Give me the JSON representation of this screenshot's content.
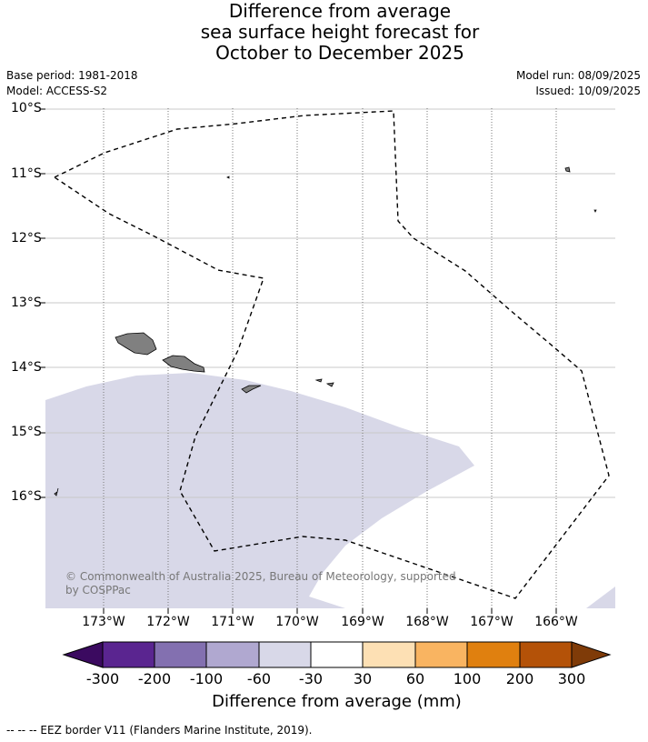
{
  "title": {
    "line1": "Difference from average",
    "line2": "sea surface height forecast for",
    "line3": "October to December 2025"
  },
  "meta": {
    "base_period": "Base period: 1981-2018",
    "model": "Model: ACCESS-S2",
    "model_run": "Model run: 08/09/2025",
    "issued": "Issued: 10/09/2025"
  },
  "map": {
    "lat_labels": [
      "10°S",
      "11°S",
      "12°S",
      "13°S",
      "14°S",
      "15°S",
      "16°S"
    ],
    "lon_labels": [
      "173°W",
      "172°W",
      "171°W",
      "170°W",
      "169°W",
      "168°W",
      "167°W",
      "166°W"
    ],
    "anomaly_fill_color": "#d8d8e8",
    "land_color": "#808080",
    "copyright_line1": "© Commonwealth of Australia 2025, Bureau of Meteorology, supported",
    "copyright_line2": "by COSPPac"
  },
  "colorbar": {
    "tick_labels": [
      "-300",
      "-200",
      "-100",
      "-60",
      "-30",
      "30",
      "60",
      "100",
      "200",
      "300"
    ],
    "colors": [
      "#3b0a60",
      "#5a2590",
      "#8370b0",
      "#b0a8d0",
      "#d8d8e8",
      "#ffffff",
      "#fde0b4",
      "#f9b461",
      "#e0800f",
      "#b45208",
      "#7f3b08"
    ],
    "title": "Difference from average (mm)"
  },
  "footnote": "--  --  -- EEZ border V11 (Flanders Marine Institute, 2019)."
}
